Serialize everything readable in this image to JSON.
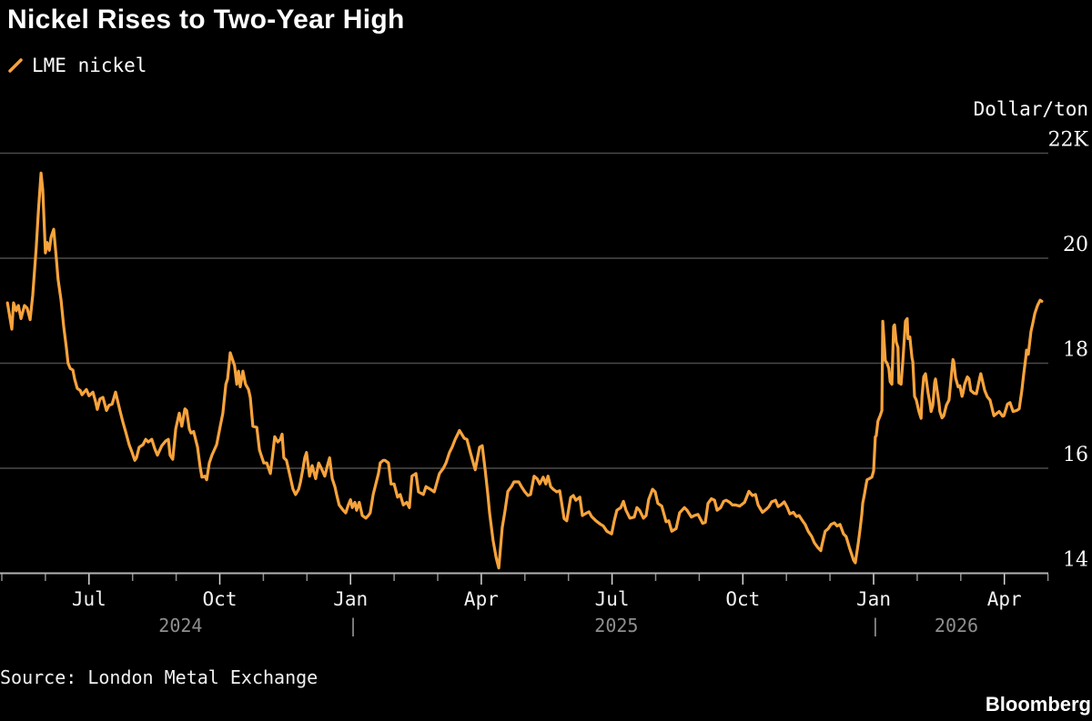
{
  "title": "Nickel Rises to Two-Year High",
  "legend": {
    "label": "LME nickel",
    "swatch": "slash-icon"
  },
  "y_axis": {
    "unit": "Dollar/ton",
    "ticks": [
      {
        "label": "22K",
        "value": 22
      },
      {
        "label": "20",
        "value": 20
      },
      {
        "label": "18",
        "value": 18
      },
      {
        "label": "16",
        "value": 16
      },
      {
        "label": "14",
        "value": 14
      }
    ]
  },
  "x_axis": {
    "month_labels": [
      {
        "label": "Jul",
        "m": 2
      },
      {
        "label": "Oct",
        "m": 5
      },
      {
        "label": "Jan",
        "m": 8
      },
      {
        "label": "Apr",
        "m": 11
      },
      {
        "label": "Jul",
        "m": 14
      },
      {
        "label": "Oct",
        "m": 17
      },
      {
        "label": "Jan",
        "m": 20
      },
      {
        "label": "Apr",
        "m": 23
      }
    ],
    "year_labels": [
      {
        "label": "2024",
        "m": 4.1
      },
      {
        "label": "|",
        "m": 8.06
      },
      {
        "label": "2025",
        "m": 14.1
      },
      {
        "label": "|",
        "m": 20.04
      },
      {
        "label": "2026",
        "m": 21.9
      }
    ],
    "minor_tick_month_range": [
      0,
      24
    ]
  },
  "source": "Source: London Metal Exchange",
  "brand": "Bloomberg",
  "colors": {
    "background": "#000000",
    "line": "#F7A33C",
    "gridline": "#4a4a4a",
    "axis_line": "#b3b3b3",
    "title": "#ffffff",
    "tick_label": "#f2f2f2",
    "year_label": "#8f8f8f"
  },
  "chart_data": {
    "type": "line",
    "title": "Nickel Rises to Two-Year High",
    "series": [
      {
        "name": "LME nickel",
        "color": "#F7A33C"
      }
    ],
    "x_unit": "months since 2024-05-01 (0 = May 2024, 2 = Jul 2024, 23 = Apr 2026)",
    "y_unit": "thousand dollars per ton",
    "ylim": [
      13.75,
      22.4
    ],
    "gridline_values": [
      22,
      20,
      18,
      16
    ],
    "baseline_value": 14,
    "legend_position": "top-left",
    "grid": true,
    "points": [
      [
        0.13,
        19.15
      ],
      [
        0.23,
        18.65
      ],
      [
        0.27,
        19.15
      ],
      [
        0.33,
        19.0
      ],
      [
        0.38,
        19.1
      ],
      [
        0.44,
        18.85
      ],
      [
        0.52,
        19.1
      ],
      [
        0.58,
        19.05
      ],
      [
        0.65,
        18.83
      ],
      [
        0.71,
        19.3
      ],
      [
        0.79,
        20.2
      ],
      [
        0.84,
        20.9
      ],
      [
        0.9,
        21.62
      ],
      [
        0.94,
        21.3
      ],
      [
        1.0,
        20.1
      ],
      [
        1.04,
        20.3
      ],
      [
        1.09,
        20.15
      ],
      [
        1.13,
        20.4
      ],
      [
        1.19,
        20.55
      ],
      [
        1.25,
        20.0
      ],
      [
        1.29,
        19.6
      ],
      [
        1.36,
        19.2
      ],
      [
        1.42,
        18.7
      ],
      [
        1.48,
        18.3
      ],
      [
        1.52,
        18.0
      ],
      [
        1.57,
        17.9
      ],
      [
        1.63,
        17.87
      ],
      [
        1.67,
        17.7
      ],
      [
        1.73,
        17.52
      ],
      [
        1.8,
        17.48
      ],
      [
        1.84,
        17.4
      ],
      [
        1.94,
        17.5
      ],
      [
        2.0,
        17.38
      ],
      [
        2.09,
        17.45
      ],
      [
        2.15,
        17.27
      ],
      [
        2.19,
        17.12
      ],
      [
        2.25,
        17.32
      ],
      [
        2.32,
        17.35
      ],
      [
        2.4,
        17.1
      ],
      [
        2.46,
        17.2
      ],
      [
        2.53,
        17.22
      ],
      [
        2.61,
        17.45
      ],
      [
        2.71,
        17.1
      ],
      [
        2.78,
        16.87
      ],
      [
        2.84,
        16.7
      ],
      [
        2.92,
        16.45
      ],
      [
        2.99,
        16.3
      ],
      [
        3.05,
        16.15
      ],
      [
        3.09,
        16.2
      ],
      [
        3.15,
        16.4
      ],
      [
        3.24,
        16.45
      ],
      [
        3.3,
        16.55
      ],
      [
        3.36,
        16.5
      ],
      [
        3.44,
        16.55
      ],
      [
        3.51,
        16.37
      ],
      [
        3.57,
        16.25
      ],
      [
        3.67,
        16.43
      ],
      [
        3.76,
        16.52
      ],
      [
        3.82,
        16.55
      ],
      [
        3.86,
        16.25
      ],
      [
        3.92,
        16.17
      ],
      [
        3.99,
        16.75
      ],
      [
        4.07,
        17.05
      ],
      [
        4.13,
        16.8
      ],
      [
        4.2,
        17.13
      ],
      [
        4.24,
        17.1
      ],
      [
        4.3,
        16.75
      ],
      [
        4.34,
        16.67
      ],
      [
        4.4,
        16.7
      ],
      [
        4.49,
        16.4
      ],
      [
        4.55,
        16.03
      ],
      [
        4.59,
        15.83
      ],
      [
        4.66,
        15.85
      ],
      [
        4.7,
        15.78
      ],
      [
        4.76,
        16.1
      ],
      [
        4.82,
        16.25
      ],
      [
        4.93,
        16.45
      ],
      [
        5.01,
        16.8
      ],
      [
        5.07,
        17.05
      ],
      [
        5.14,
        17.6
      ],
      [
        5.18,
        17.7
      ],
      [
        5.24,
        18.2
      ],
      [
        5.3,
        18.05
      ],
      [
        5.34,
        17.95
      ],
      [
        5.39,
        17.6
      ],
      [
        5.43,
        17.85
      ],
      [
        5.47,
        17.55
      ],
      [
        5.53,
        17.85
      ],
      [
        5.59,
        17.6
      ],
      [
        5.66,
        17.5
      ],
      [
        5.7,
        17.35
      ],
      [
        5.76,
        16.8
      ],
      [
        5.85,
        16.78
      ],
      [
        5.91,
        16.35
      ],
      [
        5.95,
        16.25
      ],
      [
        6.01,
        16.1
      ],
      [
        6.08,
        16.1
      ],
      [
        6.16,
        15.9
      ],
      [
        6.22,
        16.3
      ],
      [
        6.26,
        16.6
      ],
      [
        6.33,
        16.5
      ],
      [
        6.39,
        16.55
      ],
      [
        6.43,
        16.65
      ],
      [
        6.47,
        16.2
      ],
      [
        6.53,
        16.15
      ],
      [
        6.6,
        15.9
      ],
      [
        6.68,
        15.6
      ],
      [
        6.74,
        15.5
      ],
      [
        6.81,
        15.6
      ],
      [
        6.85,
        15.73
      ],
      [
        6.91,
        16.0
      ],
      [
        6.95,
        16.2
      ],
      [
        6.99,
        16.3
      ],
      [
        7.06,
        15.85
      ],
      [
        7.12,
        16.05
      ],
      [
        7.2,
        15.8
      ],
      [
        7.27,
        16.1
      ],
      [
        7.33,
        16.0
      ],
      [
        7.41,
        15.85
      ],
      [
        7.47,
        16.05
      ],
      [
        7.52,
        16.2
      ],
      [
        7.58,
        15.8
      ],
      [
        7.64,
        15.65
      ],
      [
        7.68,
        15.5
      ],
      [
        7.74,
        15.3
      ],
      [
        7.83,
        15.2
      ],
      [
        7.89,
        15.15
      ],
      [
        7.95,
        15.3
      ],
      [
        8.0,
        15.4
      ],
      [
        8.04,
        15.25
      ],
      [
        8.1,
        15.35
      ],
      [
        8.14,
        15.2
      ],
      [
        8.2,
        15.35
      ],
      [
        8.27,
        15.1
      ],
      [
        8.35,
        15.05
      ],
      [
        8.41,
        15.1
      ],
      [
        8.45,
        15.15
      ],
      [
        8.52,
        15.5
      ],
      [
        8.58,
        15.7
      ],
      [
        8.64,
        15.9
      ],
      [
        8.68,
        16.1
      ],
      [
        8.75,
        16.15
      ],
      [
        8.79,
        16.15
      ],
      [
        8.87,
        16.1
      ],
      [
        8.93,
        15.7
      ],
      [
        9.0,
        15.7
      ],
      [
        9.08,
        15.45
      ],
      [
        9.14,
        15.5
      ],
      [
        9.21,
        15.3
      ],
      [
        9.29,
        15.35
      ],
      [
        9.35,
        15.25
      ],
      [
        9.41,
        15.85
      ],
      [
        9.5,
        15.9
      ],
      [
        9.56,
        15.55
      ],
      [
        9.67,
        15.5
      ],
      [
        9.73,
        15.65
      ],
      [
        9.83,
        15.6
      ],
      [
        9.92,
        15.55
      ],
      [
        10.04,
        15.9
      ],
      [
        10.13,
        16.0
      ],
      [
        10.19,
        16.1
      ],
      [
        10.27,
        16.3
      ],
      [
        10.33,
        16.4
      ],
      [
        10.4,
        16.55
      ],
      [
        10.46,
        16.65
      ],
      [
        10.5,
        16.72
      ],
      [
        10.61,
        16.57
      ],
      [
        10.67,
        16.55
      ],
      [
        10.75,
        16.3
      ],
      [
        10.86,
        15.97
      ],
      [
        10.96,
        16.4
      ],
      [
        11.02,
        16.43
      ],
      [
        11.09,
        15.96
      ],
      [
        11.15,
        15.5
      ],
      [
        11.19,
        15.15
      ],
      [
        11.27,
        14.63
      ],
      [
        11.34,
        14.3
      ],
      [
        11.4,
        14.1
      ],
      [
        11.48,
        14.87
      ],
      [
        11.54,
        15.17
      ],
      [
        11.61,
        15.56
      ],
      [
        11.69,
        15.65
      ],
      [
        11.75,
        15.74
      ],
      [
        11.86,
        15.74
      ],
      [
        11.92,
        15.65
      ],
      [
        12.0,
        15.55
      ],
      [
        12.07,
        15.48
      ],
      [
        12.13,
        15.5
      ],
      [
        12.21,
        15.85
      ],
      [
        12.28,
        15.8
      ],
      [
        12.34,
        15.7
      ],
      [
        12.42,
        15.83
      ],
      [
        12.48,
        15.7
      ],
      [
        12.53,
        15.85
      ],
      [
        12.59,
        15.65
      ],
      [
        12.65,
        15.6
      ],
      [
        12.73,
        15.55
      ],
      [
        12.8,
        15.57
      ],
      [
        12.9,
        15.04
      ],
      [
        12.96,
        15.0
      ],
      [
        13.05,
        15.44
      ],
      [
        13.11,
        15.48
      ],
      [
        13.17,
        15.39
      ],
      [
        13.26,
        15.45
      ],
      [
        13.32,
        15.1
      ],
      [
        13.38,
        15.13
      ],
      [
        13.47,
        15.17
      ],
      [
        13.53,
        15.08
      ],
      [
        13.63,
        15.0
      ],
      [
        13.74,
        14.93
      ],
      [
        13.8,
        14.9
      ],
      [
        13.88,
        14.8
      ],
      [
        13.99,
        14.75
      ],
      [
        14.05,
        15.0
      ],
      [
        14.11,
        15.2
      ],
      [
        14.2,
        15.25
      ],
      [
        14.26,
        15.37
      ],
      [
        14.32,
        15.2
      ],
      [
        14.41,
        15.05
      ],
      [
        14.51,
        15.07
      ],
      [
        14.57,
        15.25
      ],
      [
        14.63,
        15.2
      ],
      [
        14.72,
        15.05
      ],
      [
        14.78,
        15.1
      ],
      [
        14.84,
        15.4
      ],
      [
        14.93,
        15.6
      ],
      [
        14.99,
        15.55
      ],
      [
        15.05,
        15.33
      ],
      [
        15.14,
        15.28
      ],
      [
        15.24,
        14.98
      ],
      [
        15.3,
        15.0
      ],
      [
        15.37,
        14.8
      ],
      [
        15.47,
        14.85
      ],
      [
        15.55,
        15.15
      ],
      [
        15.66,
        15.25
      ],
      [
        15.72,
        15.2
      ],
      [
        15.82,
        15.07
      ],
      [
        15.89,
        15.1
      ],
      [
        15.97,
        15.12
      ],
      [
        16.08,
        14.95
      ],
      [
        16.14,
        14.97
      ],
      [
        16.2,
        15.33
      ],
      [
        16.28,
        15.42
      ],
      [
        16.35,
        15.39
      ],
      [
        16.41,
        15.2
      ],
      [
        16.49,
        15.25
      ],
      [
        16.56,
        15.37
      ],
      [
        16.62,
        15.39
      ],
      [
        16.7,
        15.35
      ],
      [
        16.76,
        15.3
      ],
      [
        16.83,
        15.3
      ],
      [
        16.93,
        15.28
      ],
      [
        17.04,
        15.35
      ],
      [
        17.14,
        15.56
      ],
      [
        17.22,
        15.48
      ],
      [
        17.29,
        15.5
      ],
      [
        17.35,
        15.3
      ],
      [
        17.45,
        15.16
      ],
      [
        17.54,
        15.22
      ],
      [
        17.6,
        15.27
      ],
      [
        17.66,
        15.36
      ],
      [
        17.75,
        15.39
      ],
      [
        17.81,
        15.27
      ],
      [
        17.87,
        15.3
      ],
      [
        17.95,
        15.36
      ],
      [
        18.02,
        15.25
      ],
      [
        18.08,
        15.13
      ],
      [
        18.16,
        15.16
      ],
      [
        18.23,
        15.08
      ],
      [
        18.29,
        15.1
      ],
      [
        18.37,
        15.0
      ],
      [
        18.43,
        14.93
      ],
      [
        18.5,
        14.8
      ],
      [
        18.58,
        14.7
      ],
      [
        18.64,
        14.58
      ],
      [
        18.71,
        14.5
      ],
      [
        18.79,
        14.43
      ],
      [
        18.81,
        14.52
      ],
      [
        18.89,
        14.8
      ],
      [
        18.96,
        14.85
      ],
      [
        19.02,
        14.93
      ],
      [
        19.1,
        14.96
      ],
      [
        19.16,
        14.9
      ],
      [
        19.23,
        14.93
      ],
      [
        19.31,
        14.75
      ],
      [
        19.37,
        14.7
      ],
      [
        19.44,
        14.5
      ],
      [
        19.54,
        14.25
      ],
      [
        19.58,
        14.2
      ],
      [
        19.65,
        14.58
      ],
      [
        19.69,
        14.85
      ],
      [
        19.73,
        15.13
      ],
      [
        19.75,
        15.33
      ],
      [
        19.79,
        15.5
      ],
      [
        19.83,
        15.7
      ],
      [
        19.85,
        15.78
      ],
      [
        19.9,
        15.8
      ],
      [
        19.96,
        15.83
      ],
      [
        20.0,
        15.95
      ],
      [
        20.04,
        16.6
      ],
      [
        20.06,
        16.62
      ],
      [
        20.1,
        16.9
      ],
      [
        20.15,
        17.0
      ],
      [
        20.19,
        17.1
      ],
      [
        20.21,
        18.8
      ],
      [
        20.27,
        18.05
      ],
      [
        20.31,
        18.0
      ],
      [
        20.35,
        17.9
      ],
      [
        20.38,
        17.65
      ],
      [
        20.42,
        17.6
      ],
      [
        20.46,
        18.7
      ],
      [
        20.48,
        18.73
      ],
      [
        20.52,
        18.4
      ],
      [
        20.56,
        18.3
      ],
      [
        20.58,
        17.63
      ],
      [
        20.63,
        17.6
      ],
      [
        20.67,
        18.03
      ],
      [
        20.73,
        18.8
      ],
      [
        20.77,
        18.85
      ],
      [
        20.79,
        18.47
      ],
      [
        20.83,
        18.5
      ],
      [
        20.88,
        18.1
      ],
      [
        20.9,
        18.03
      ],
      [
        20.94,
        17.37
      ],
      [
        20.98,
        17.3
      ],
      [
        21.04,
        17.08
      ],
      [
        21.09,
        16.95
      ],
      [
        21.11,
        17.37
      ],
      [
        21.15,
        17.74
      ],
      [
        21.19,
        17.8
      ],
      [
        21.25,
        17.43
      ],
      [
        21.29,
        17.25
      ],
      [
        21.32,
        17.08
      ],
      [
        21.36,
        17.2
      ],
      [
        21.4,
        17.63
      ],
      [
        21.42,
        17.7
      ],
      [
        21.5,
        17.25
      ],
      [
        21.52,
        17.08
      ],
      [
        21.57,
        16.96
      ],
      [
        21.61,
        17.0
      ],
      [
        21.67,
        17.2
      ],
      [
        21.73,
        17.3
      ],
      [
        21.77,
        17.65
      ],
      [
        21.82,
        18.07
      ],
      [
        21.84,
        18.03
      ],
      [
        21.88,
        17.72
      ],
      [
        21.94,
        17.55
      ],
      [
        21.98,
        17.57
      ],
      [
        22.03,
        17.37
      ],
      [
        22.05,
        17.43
      ],
      [
        22.09,
        17.6
      ],
      [
        22.15,
        17.74
      ],
      [
        22.19,
        17.7
      ],
      [
        22.23,
        17.48
      ],
      [
        22.3,
        17.43
      ],
      [
        22.36,
        17.42
      ],
      [
        22.44,
        17.74
      ],
      [
        22.46,
        17.8
      ],
      [
        22.55,
        17.48
      ],
      [
        22.61,
        17.36
      ],
      [
        22.67,
        17.3
      ],
      [
        22.76,
        17.0
      ],
      [
        22.82,
        17.04
      ],
      [
        22.88,
        17.08
      ],
      [
        22.96,
        16.99
      ],
      [
        22.99,
        17.0
      ],
      [
        23.07,
        17.22
      ],
      [
        23.13,
        17.25
      ],
      [
        23.2,
        17.08
      ],
      [
        23.28,
        17.1
      ],
      [
        23.34,
        17.13
      ],
      [
        23.4,
        17.48
      ],
      [
        23.44,
        17.77
      ],
      [
        23.49,
        18.1
      ],
      [
        23.51,
        18.25
      ],
      [
        23.55,
        18.17
      ],
      [
        23.61,
        18.6
      ],
      [
        23.65,
        18.75
      ],
      [
        23.7,
        18.95
      ],
      [
        23.76,
        19.1
      ],
      [
        23.82,
        19.2
      ],
      [
        23.86,
        19.18
      ]
    ]
  }
}
